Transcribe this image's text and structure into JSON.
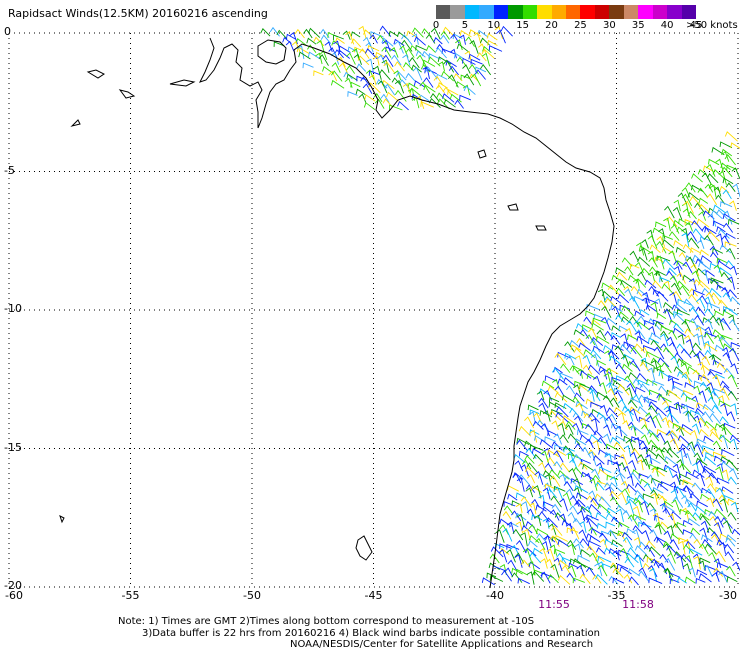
{
  "title": "Rapidsact Winds(12.5KM) 20160216 ascending",
  "legend": {
    "labels": [
      "0",
      "5",
      "10",
      "15",
      "20",
      "25",
      "30",
      "35",
      "40",
      "45"
    ],
    "unit": ">50 knots",
    "colors": [
      "#5a5a5a",
      "#9a9a9a",
      "#00b8ff",
      "#33aaff",
      "#0022ff",
      "#009900",
      "#33dd00",
      "#ffdd00",
      "#ffaa00",
      "#ff6600",
      "#ff0000",
      "#cc0000",
      "#7a3b10",
      "#cc8866",
      "#ff00ff",
      "#cc00cc",
      "#8800cc",
      "#5500aa"
    ]
  },
  "map": {
    "lat_labels": [
      "0",
      "-5",
      "-10",
      "-15",
      "-20"
    ],
    "lon_labels": [
      "-60",
      "-55",
      "-50",
      "-45",
      "-40",
      "-35",
      "-30"
    ],
    "lat_range": [
      -20,
      0
    ],
    "lon_range": [
      -60,
      -30
    ],
    "grid": "dotted",
    "coastline_color": "#000000"
  },
  "times": [
    "11:55",
    "11:58"
  ],
  "notes": {
    "line1": "Note: 1) Times are GMT 2)Times along bottom correspond to measurement at -10S",
    "line2": "3)Data buffer is 22 hrs from 20160216 4) Black wind barbs indicate possible contamination",
    "line3": "NOAA/NESDIS/Center for Satellite Applications and Research"
  }
}
